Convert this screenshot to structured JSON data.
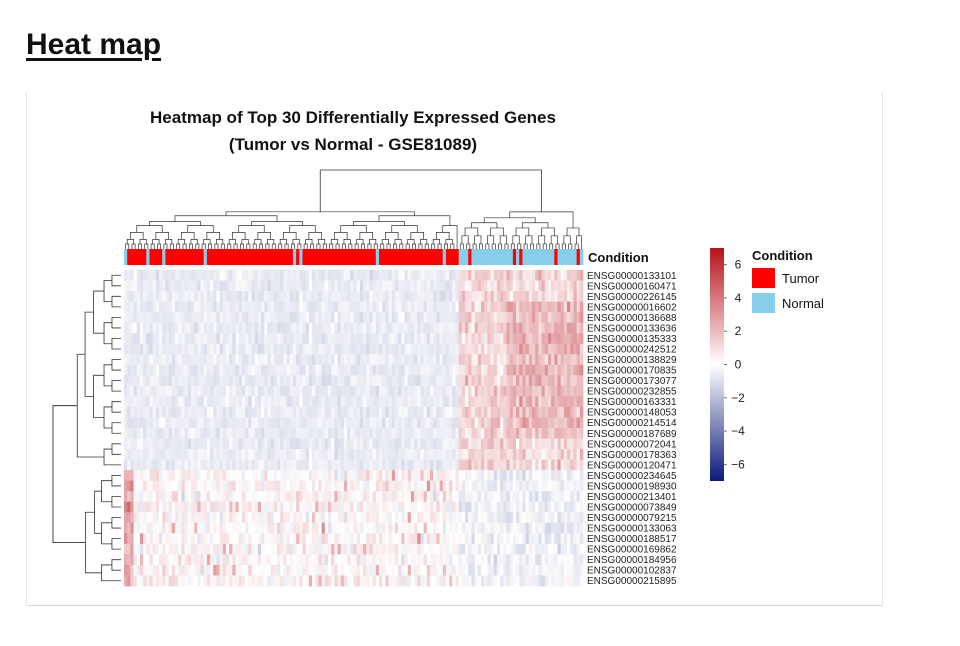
{
  "page": {
    "heading": "Heat map"
  },
  "chart_data": {
    "type": "heatmap",
    "title": "Heatmap of Top 30 Differentially Expressed Genes",
    "subtitle": "(Tumor vs Normal - GSE81089)",
    "annotation_title": "Condition",
    "genes": [
      "ENSG00000133101",
      "ENSG00000160471",
      "ENSG00000226145",
      "ENSG00000016602",
      "ENSG00000136688",
      "ENSG00000133636",
      "ENSG00000135333",
      "ENSG00000242512",
      "ENSG00000138829",
      "ENSG00000170835",
      "ENSG00000173077",
      "ENSG00000232855",
      "ENSG00000163331",
      "ENSG00000148053",
      "ENSG00000214514",
      "ENSG00000187689",
      "ENSG00000072041",
      "ENSG00000178363",
      "ENSG00000120471",
      "ENSG00000234645",
      "ENSG00000198930",
      "ENSG00000213401",
      "ENSG00000073849",
      "ENSG00000079215",
      "ENSG00000133063",
      "ENSG00000188517",
      "ENSG00000169862",
      "ENSG00000184956",
      "ENSG00000102837",
      "ENSG00000215895"
    ],
    "color_scale": {
      "title": "",
      "min": -7,
      "max": 7,
      "ticks": [
        6,
        4,
        2,
        0,
        -2,
        -4,
        -6
      ],
      "low_color": "#0b1a7a",
      "mid_color": "#ffffff",
      "high_color": "#b8121b"
    },
    "condition_legend": {
      "title": "Condition",
      "entries": [
        {
          "label": "Tumor",
          "color": "#ff0000"
        },
        {
          "label": "Normal",
          "color": "#87ceeb"
        }
      ]
    },
    "sample_groups": {
      "tumor_cluster_columns": 105,
      "normal_cluster_columns": 39,
      "normal_in_tumor_cluster": [
        0,
        7,
        12,
        25,
        53,
        55,
        79,
        100
      ],
      "tumor_in_normal_cluster": [
        3,
        17,
        19,
        30,
        37
      ]
    },
    "pattern": {
      "upregulated_in_normal_genes": 19,
      "upregulated_in_tumor_genes": 11
    }
  }
}
